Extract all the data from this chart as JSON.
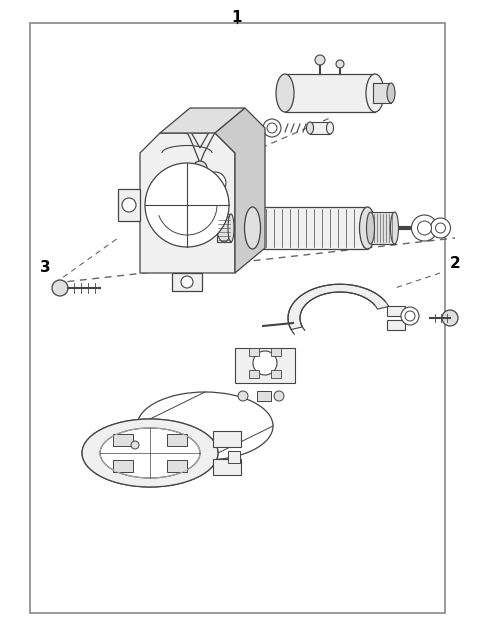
{
  "background_color": "#ffffff",
  "border_color": "#888888",
  "border_lw": 1.2,
  "label1_text": "1",
  "label2_text": "2",
  "label3_text": "3",
  "line_color": "#444444",
  "fill_light": "#f0f0f0",
  "fill_mid": "#e0e0e0",
  "fill_dark": "#cccccc",
  "fig_width": 4.8,
  "fig_height": 6.28,
  "dpi": 100
}
